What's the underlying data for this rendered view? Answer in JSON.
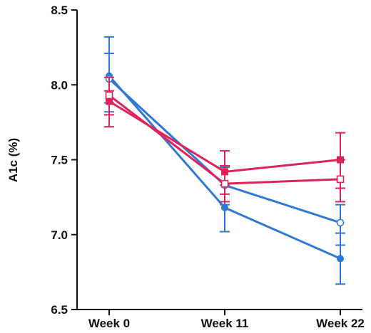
{
  "chart_data": {
    "type": "line",
    "title": "",
    "xlabel": "",
    "ylabel": "A1c (%)",
    "categories": [
      "Week 0",
      "Week 11",
      "Week 22"
    ],
    "yticks": [
      "6.5",
      "7.0",
      "7.5",
      "8.0",
      "8.5"
    ],
    "ylim": [
      6.5,
      8.5
    ],
    "grid": false,
    "legend": "none",
    "series": [
      {
        "color": "#2f78d4",
        "marker": "filled-circle",
        "values": [
          8.06,
          7.18,
          6.84
        ],
        "err_low": [
          7.82,
          7.02,
          6.67
        ],
        "err_high": [
          8.32,
          7.33,
          7.01
        ]
      },
      {
        "color": "#2f78d4",
        "marker": "open-circle",
        "values": [
          8.04,
          7.33,
          7.08
        ],
        "err_low": [
          7.88,
          7.2,
          6.93
        ],
        "err_high": [
          8.21,
          7.45,
          7.2
        ]
      },
      {
        "color": "#e0225a",
        "marker": "filled-square",
        "values": [
          7.89,
          7.42,
          7.5
        ],
        "err_low": [
          7.72,
          7.27,
          7.31
        ],
        "err_high": [
          7.96,
          7.56,
          7.68
        ]
      },
      {
        "color": "#e0225a",
        "marker": "open-square",
        "values": [
          7.93,
          7.34,
          7.37
        ],
        "err_low": [
          7.8,
          7.22,
          7.22
        ],
        "err_high": [
          8.05,
          7.46,
          7.5
        ]
      }
    ]
  }
}
